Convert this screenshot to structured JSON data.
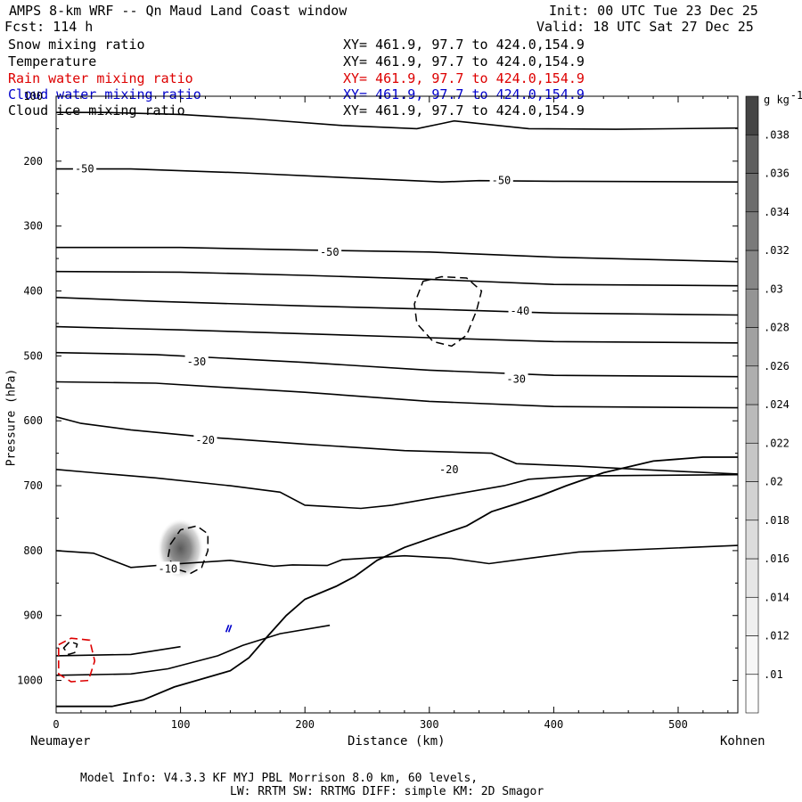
{
  "header": {
    "title": "AMPS 8-km WRF -- Qn Maud Land Coast window",
    "forecast": "Fcst:  114 h",
    "init": "Init: 00 UTC Tue 23 Dec 25",
    "valid": "Valid: 18 UTC Sat 27 Dec 25"
  },
  "fields": [
    {
      "name": "Snow mixing ratio",
      "xy": "XY= 461.9, 97.7 to 424.0,154.9",
      "color": "#000000"
    },
    {
      "name": "Temperature",
      "xy": "XY= 461.9, 97.7 to 424.0,154.9",
      "color": "#000000"
    },
    {
      "name": "Rain water mixing ratio",
      "xy": "XY= 461.9, 97.7 to 424.0,154.9",
      "color": "#dd0000"
    },
    {
      "name": "Cloud water mixing ratio",
      "xy": "XY= 461.9, 97.7 to 424.0,154.9",
      "color": "#0000cc"
    },
    {
      "name": "Cloud ice mixing ratio",
      "xy": "XY= 461.9, 97.7 to 424.0,154.9",
      "color": "#000000"
    }
  ],
  "footer": {
    "line1": "Model Info: V4.3.3   KF     MYJ PBL  Morrison             8.0 km,  60 levels,",
    "line2": "LW: RRTM SW: RRTMG   DIFF: simple KM: 2D Smagor"
  },
  "chart_data": {
    "type": "cross-section contour",
    "xlabel": "Distance (km)",
    "ylabel": "Pressure (hPa)",
    "x_start_label": "Neumayer",
    "x_end_label": "Kohnen",
    "xlim": [
      0,
      548
    ],
    "ylim": [
      1050,
      100
    ],
    "x_ticks": [
      0,
      100,
      200,
      300,
      400,
      500
    ],
    "y_ticks": [
      100,
      200,
      300,
      400,
      500,
      600,
      700,
      800,
      900,
      1000
    ],
    "colorbar": {
      "unit": "g kg",
      "unit_exp": "-1",
      "levels": [
        ".01",
        ".012",
        ".014",
        ".016",
        ".018",
        ".02",
        ".022",
        ".024",
        ".026",
        ".028",
        ".03",
        ".032",
        ".034",
        ".036",
        ".038"
      ],
      "colors": [
        "#fdfdfd",
        "#f7f7f7",
        "#efefef",
        "#e6e6e6",
        "#dcdcdc",
        "#d2d2d2",
        "#c6c6c6",
        "#bababa",
        "#aeaeae",
        "#a1a1a1",
        "#949494",
        "#878787",
        "#7a7a7a",
        "#6c6c6c",
        "#5e5e5e",
        "#444444"
      ]
    },
    "temperature_labels": [
      {
        "text": "-50",
        "x": 15,
        "p": 212
      },
      {
        "text": "-50",
        "x": 350,
        "p": 230
      },
      {
        "text": "-50",
        "x": 212,
        "p": 340
      },
      {
        "text": "-40",
        "x": 365,
        "p": 431
      },
      {
        "text": "-30",
        "x": 105,
        "p": 509
      },
      {
        "text": "-30",
        "x": 362,
        "p": 536
      },
      {
        "text": "-20",
        "x": 112,
        "p": 630
      },
      {
        "text": "-20",
        "x": 308,
        "p": 675
      },
      {
        "text": "-10",
        "x": 82,
        "p": 828
      }
    ],
    "temperature_isotherms": [
      {
        "pts": [
          [
            0,
            125
          ],
          [
            40,
            125
          ],
          [
            100,
            128
          ],
          [
            160,
            135
          ],
          [
            230,
            145
          ],
          [
            290,
            150
          ],
          [
            310,
            142
          ],
          [
            320,
            138
          ],
          [
            380,
            150
          ],
          [
            450,
            151
          ],
          [
            548,
            149
          ]
        ]
      },
      {
        "pts": [
          [
            0,
            212
          ],
          [
            60,
            212
          ],
          [
            150,
            218
          ],
          [
            240,
            226
          ],
          [
            310,
            232
          ],
          [
            340,
            230
          ],
          [
            400,
            231
          ],
          [
            548,
            232
          ]
        ]
      },
      {
        "pts": [
          [
            0,
            333
          ],
          [
            100,
            333
          ],
          [
            200,
            337
          ],
          [
            300,
            340
          ],
          [
            400,
            348
          ],
          [
            548,
            355
          ]
        ]
      },
      {
        "pts": [
          [
            0,
            370
          ],
          [
            100,
            371
          ],
          [
            200,
            376
          ],
          [
            300,
            382
          ],
          [
            400,
            390
          ],
          [
            548,
            392
          ]
        ]
      },
      {
        "pts": [
          [
            0,
            410
          ],
          [
            80,
            416
          ],
          [
            200,
            423
          ],
          [
            300,
            428
          ],
          [
            400,
            434
          ],
          [
            548,
            437
          ]
        ]
      },
      {
        "pts": [
          [
            0,
            455
          ],
          [
            100,
            460
          ],
          [
            200,
            466
          ],
          [
            300,
            472
          ],
          [
            400,
            478
          ],
          [
            548,
            480
          ]
        ]
      },
      {
        "pts": [
          [
            0,
            495
          ],
          [
            80,
            498
          ],
          [
            200,
            510
          ],
          [
            300,
            522
          ],
          [
            400,
            530
          ],
          [
            548,
            532
          ]
        ]
      },
      {
        "pts": [
          [
            0,
            540
          ],
          [
            80,
            542
          ],
          [
            200,
            556
          ],
          [
            300,
            570
          ],
          [
            400,
            578
          ],
          [
            548,
            580
          ]
        ]
      },
      {
        "pts": [
          [
            0,
            594
          ],
          [
            20,
            604
          ],
          [
            60,
            614
          ],
          [
            120,
            625
          ],
          [
            200,
            636
          ],
          [
            280,
            646
          ],
          [
            350,
            650
          ],
          [
            370,
            666
          ],
          [
            420,
            670
          ],
          [
            480,
            676
          ],
          [
            548,
            682
          ]
        ]
      },
      {
        "pts": [
          [
            0,
            675
          ],
          [
            30,
            680
          ],
          [
            80,
            688
          ],
          [
            140,
            700
          ],
          [
            180,
            710
          ],
          [
            200,
            730
          ],
          [
            245,
            735
          ],
          [
            270,
            730
          ],
          [
            300,
            720
          ],
          [
            360,
            700
          ],
          [
            380,
            690
          ],
          [
            420,
            685
          ],
          [
            548,
            683
          ]
        ]
      },
      {
        "pts": [
          [
            0,
            800
          ],
          [
            30,
            804
          ],
          [
            60,
            826
          ],
          [
            100,
            820
          ],
          [
            140,
            815
          ],
          [
            175,
            824
          ],
          [
            190,
            822
          ],
          [
            218,
            823
          ],
          [
            230,
            814
          ],
          [
            280,
            808
          ],
          [
            318,
            812
          ],
          [
            348,
            820
          ],
          [
            380,
            812
          ],
          [
            420,
            802
          ],
          [
            548,
            792
          ]
        ]
      },
      {
        "pts": [
          [
            0,
            962
          ],
          [
            60,
            960
          ],
          [
            100,
            948
          ]
        ]
      },
      {
        "pts": [
          [
            0,
            992
          ],
          [
            60,
            990
          ],
          [
            90,
            982
          ],
          [
            130,
            962
          ],
          [
            150,
            946
          ],
          [
            180,
            928
          ],
          [
            220,
            915
          ]
        ]
      }
    ],
    "surface_line": {
      "pts": [
        [
          0,
          1040
        ],
        [
          45,
          1040
        ],
        [
          70,
          1030
        ],
        [
          95,
          1010
        ],
        [
          140,
          985
        ],
        [
          155,
          965
        ],
        [
          170,
          932
        ],
        [
          185,
          900
        ],
        [
          200,
          875
        ],
        [
          225,
          855
        ],
        [
          240,
          840
        ],
        [
          258,
          815
        ],
        [
          280,
          795
        ],
        [
          310,
          775
        ],
        [
          330,
          762
        ],
        [
          350,
          740
        ],
        [
          370,
          728
        ],
        [
          390,
          715
        ],
        [
          410,
          700
        ],
        [
          440,
          680
        ],
        [
          480,
          662
        ],
        [
          520,
          656
        ],
        [
          548,
          656
        ]
      ]
    },
    "snow_contours": [
      {
        "pts": [
          [
            295,
            385
          ],
          [
            310,
            378
          ],
          [
            330,
            380
          ],
          [
            342,
            400
          ],
          [
            338,
            430
          ],
          [
            330,
            468
          ],
          [
            318,
            485
          ],
          [
            303,
            478
          ],
          [
            290,
            450
          ],
          [
            288,
            420
          ]
        ]
      },
      {
        "pts": [
          [
            92,
            790
          ],
          [
            100,
            768
          ],
          [
            113,
            762
          ],
          [
            122,
            774
          ],
          [
            122,
            800
          ],
          [
            117,
            826
          ],
          [
            108,
            835
          ],
          [
            96,
            828
          ],
          [
            90,
            810
          ]
        ]
      },
      {
        "pts": [
          [
            6,
            950
          ],
          [
            11,
            940
          ],
          [
            17,
            944
          ],
          [
            15,
            957
          ],
          [
            10,
            960
          ]
        ]
      }
    ],
    "rain_contour": {
      "pts": [
        [
          2,
          945
        ],
        [
          12,
          935
        ],
        [
          27,
          938
        ],
        [
          31,
          970
        ],
        [
          26,
          1000
        ],
        [
          12,
          1002
        ],
        [
          2,
          990
        ]
      ]
    },
    "cloud_water_marker": {
      "x": 138,
      "p": 920
    },
    "snow_shading": {
      "x": 100,
      "p": 797,
      "peak": 0.038
    }
  }
}
